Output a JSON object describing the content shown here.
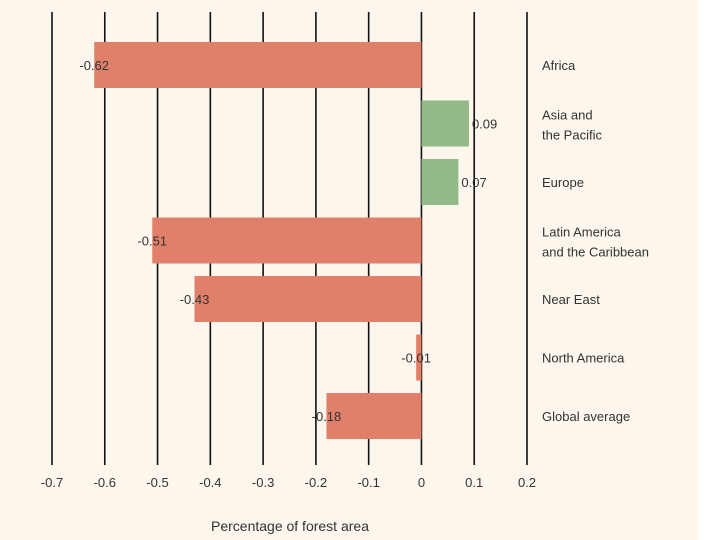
{
  "chart_data": {
    "type": "bar",
    "orientation": "horizontal",
    "categories": [
      [
        "Africa"
      ],
      [
        "Asia and",
        "the Pacific"
      ],
      [
        "Europe"
      ],
      [
        "Latin America",
        "and the Caribbean"
      ],
      [
        "Near East"
      ],
      [
        "North America"
      ],
      [
        "Global average"
      ]
    ],
    "values": [
      -0.62,
      0.09,
      0.07,
      -0.51,
      -0.43,
      -0.01,
      -0.18
    ],
    "value_labels": [
      "-0.62",
      "0.09",
      "0.07",
      "-0.51",
      "-0.43",
      "-0.01",
      "-0.18"
    ],
    "xlabel": "Percentage of forest area",
    "xlim": [
      -0.7,
      0.2
    ],
    "ticks": [
      -0.7,
      -0.6,
      -0.5,
      -0.4,
      -0.3,
      -0.2,
      -0.1,
      0,
      0.1,
      0.2
    ],
    "tick_labels": [
      "-0.7",
      "-0.6",
      "-0.5",
      "-0.4",
      "-0.3",
      "-0.2",
      "-0.1",
      "0",
      "0.1",
      "0.2"
    ],
    "grid": "vertical lines at each tick",
    "colors": {
      "negative": "#e07f6a",
      "positive": "#92b987",
      "gridline": "#111111",
      "background": "#fdf6ec"
    }
  }
}
